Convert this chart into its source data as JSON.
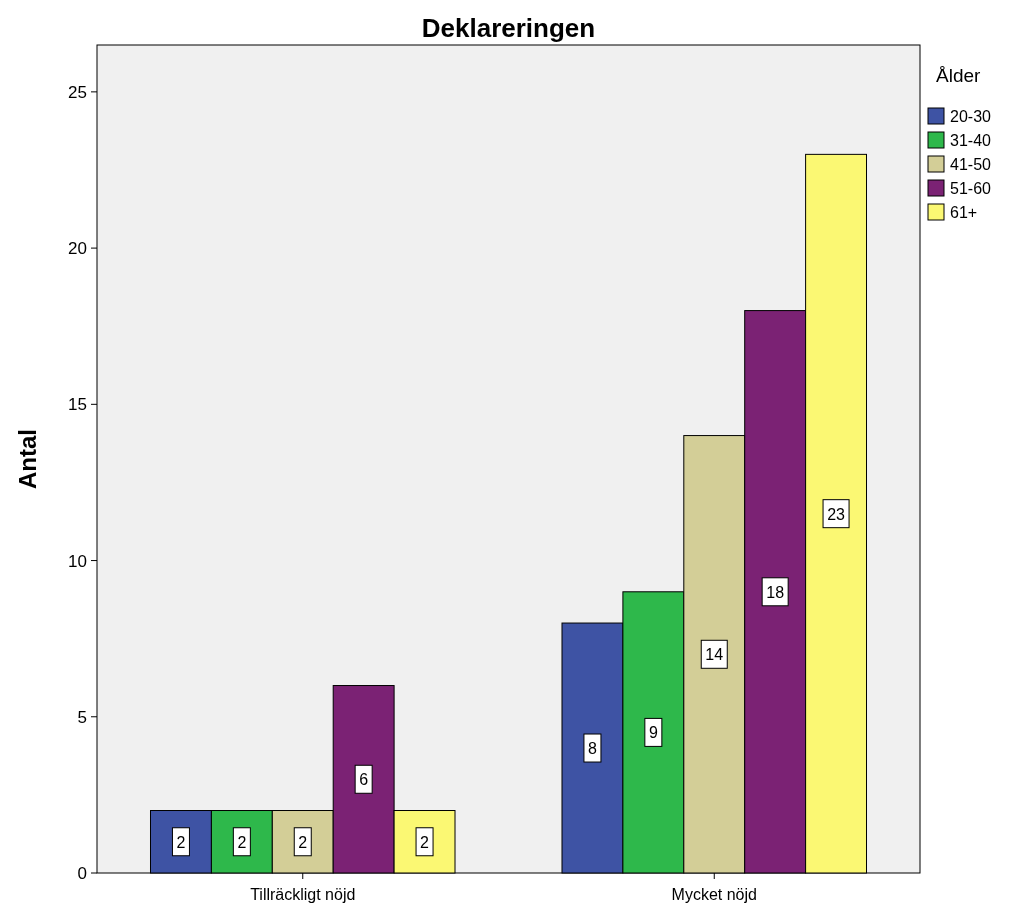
{
  "chart_data": {
    "type": "bar",
    "title": "Deklareringen",
    "ylabel": "Antal",
    "legend_title": "Ålder",
    "legend": "right",
    "data_labels": true,
    "grid": false,
    "categories": [
      "Tillräckligt nöjd",
      "Mycket nöjd"
    ],
    "ylim": [
      0,
      26.5
    ],
    "yticks": [
      0,
      5,
      10,
      15,
      20,
      25
    ],
    "series": [
      {
        "name": "20-30",
        "color": "#3e53a4",
        "values": [
          2,
          8
        ]
      },
      {
        "name": "31-40",
        "color": "#2eb84b",
        "values": [
          2,
          9
        ]
      },
      {
        "name": "41-50",
        "color": "#d3ce97",
        "values": [
          2,
          14
        ]
      },
      {
        "name": "51-60",
        "color": "#7b2274",
        "values": [
          6,
          18
        ]
      },
      {
        "name": "61+",
        "color": "#fbf873",
        "values": [
          2,
          23
        ]
      }
    ]
  }
}
